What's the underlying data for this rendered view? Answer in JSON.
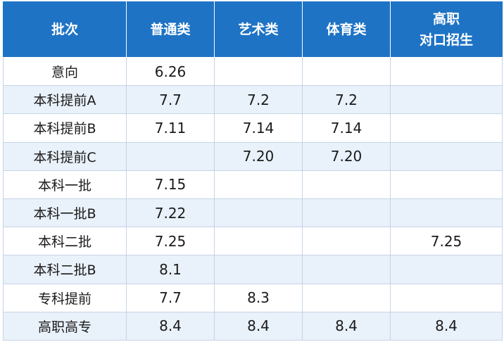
{
  "header": {
    "col0": "批次",
    "col1": "普通类",
    "col2": "艺术类",
    "col3": "体育类",
    "col4_line1": "高职",
    "col4_line2": "对口招生"
  },
  "rows": [
    {
      "batch": "意向",
      "general": "6.26",
      "art": "",
      "sports": "",
      "vocational": ""
    },
    {
      "batch": "本科提前A",
      "general": "7.7",
      "art": "7.2",
      "sports": "7.2",
      "vocational": ""
    },
    {
      "batch": "本科提前B",
      "general": "7.11",
      "art": "7.14",
      "sports": "7.14",
      "vocational": ""
    },
    {
      "batch": "本科提前C",
      "general": "",
      "art": "7.20",
      "sports": "7.20",
      "vocational": ""
    },
    {
      "batch": "本科一批",
      "general": "7.15",
      "art": "",
      "sports": "",
      "vocational": ""
    },
    {
      "batch": "本科一批B",
      "general": "7.22",
      "art": "",
      "sports": "",
      "vocational": ""
    },
    {
      "batch": "本科二批",
      "general": "7.25",
      "art": "",
      "sports": "",
      "vocational": "7.25"
    },
    {
      "batch": "本科二批B",
      "general": "8.1",
      "art": "",
      "sports": "",
      "vocational": ""
    },
    {
      "batch": "专科提前",
      "general": "7.7",
      "art": "8.3",
      "sports": "",
      "vocational": ""
    },
    {
      "batch": "高职高专",
      "general": "8.4",
      "art": "8.4",
      "sports": "8.4",
      "vocational": "8.4"
    }
  ],
  "colors": {
    "header_bg": "#1e73c4",
    "stripe_bg": "#e9f1fa",
    "border": "#c7d4e6"
  }
}
